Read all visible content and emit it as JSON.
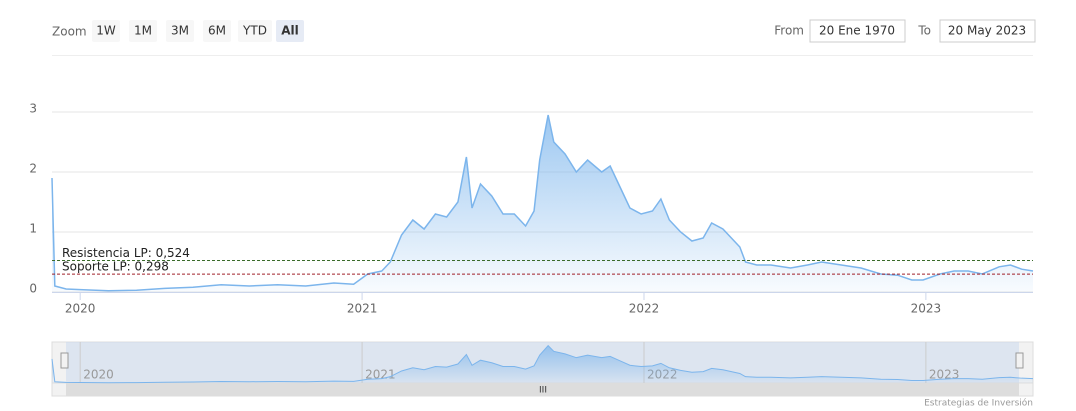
{
  "chart_data": {
    "type": "area",
    "zoom": {
      "label": "Zoom",
      "buttons": [
        "1W",
        "1M",
        "3M",
        "6M",
        "YTD",
        "All"
      ],
      "selected": "All"
    },
    "range": {
      "from_label": "From",
      "from": "20 Ene 1970",
      "to_label": "To",
      "to": "20 May 2023"
    },
    "credit": "Estrategias de Inversión",
    "color": "#7cb5ec",
    "x": [
      2019.9,
      2019.91,
      2019.95,
      2020.0,
      2020.1,
      2020.2,
      2020.3,
      2020.4,
      2020.5,
      2020.6,
      2020.7,
      2020.8,
      2020.9,
      2020.97,
      2021.02,
      2021.07,
      2021.1,
      2021.14,
      2021.18,
      2021.22,
      2021.26,
      2021.3,
      2021.34,
      2021.37,
      2021.39,
      2021.42,
      2021.46,
      2021.5,
      2021.54,
      2021.58,
      2021.61,
      2021.63,
      2021.66,
      2021.68,
      2021.72,
      2021.76,
      2021.8,
      2021.85,
      2021.88,
      2021.91,
      2021.95,
      2021.99,
      2022.03,
      2022.06,
      2022.09,
      2022.13,
      2022.17,
      2022.21,
      2022.24,
      2022.28,
      2022.31,
      2022.34,
      2022.36,
      2022.4,
      2022.45,
      2022.52,
      2022.58,
      2022.63,
      2022.7,
      2022.77,
      2022.84,
      2022.9,
      2022.95,
      2022.99,
      2023.05,
      2023.1,
      2023.15,
      2023.2,
      2023.26,
      2023.3,
      2023.34,
      2023.38
    ],
    "values": [
      1.9,
      0.1,
      0.05,
      0.04,
      0.02,
      0.03,
      0.06,
      0.08,
      0.12,
      0.1,
      0.12,
      0.1,
      0.15,
      0.13,
      0.3,
      0.35,
      0.5,
      0.95,
      1.2,
      1.05,
      1.3,
      1.25,
      1.5,
      2.25,
      1.4,
      1.8,
      1.6,
      1.3,
      1.3,
      1.1,
      1.35,
      2.2,
      2.95,
      2.5,
      2.3,
      2.0,
      2.2,
      2.0,
      2.1,
      1.8,
      1.4,
      1.3,
      1.35,
      1.55,
      1.2,
      1.0,
      0.85,
      0.9,
      1.15,
      1.05,
      0.9,
      0.75,
      0.5,
      0.45,
      0.45,
      0.4,
      0.45,
      0.5,
      0.45,
      0.4,
      0.3,
      0.28,
      0.2,
      0.2,
      0.3,
      0.35,
      0.35,
      0.3,
      0.42,
      0.45,
      0.38,
      0.35
    ],
    "xlim": [
      2019.9,
      2023.38
    ],
    "xticks": [
      2020,
      2021,
      2022,
      2023
    ],
    "ylim": [
      0,
      3
    ],
    "yticks": [
      0,
      1,
      2,
      3
    ],
    "grid": true,
    "annotations": [
      {
        "value": 0.524,
        "label": "Resistencia LP: 0,524",
        "color": "#3a6b2a"
      },
      {
        "value": 0.298,
        "label": "Soporte LP: 0,298",
        "color": "#a0202a"
      }
    ]
  }
}
